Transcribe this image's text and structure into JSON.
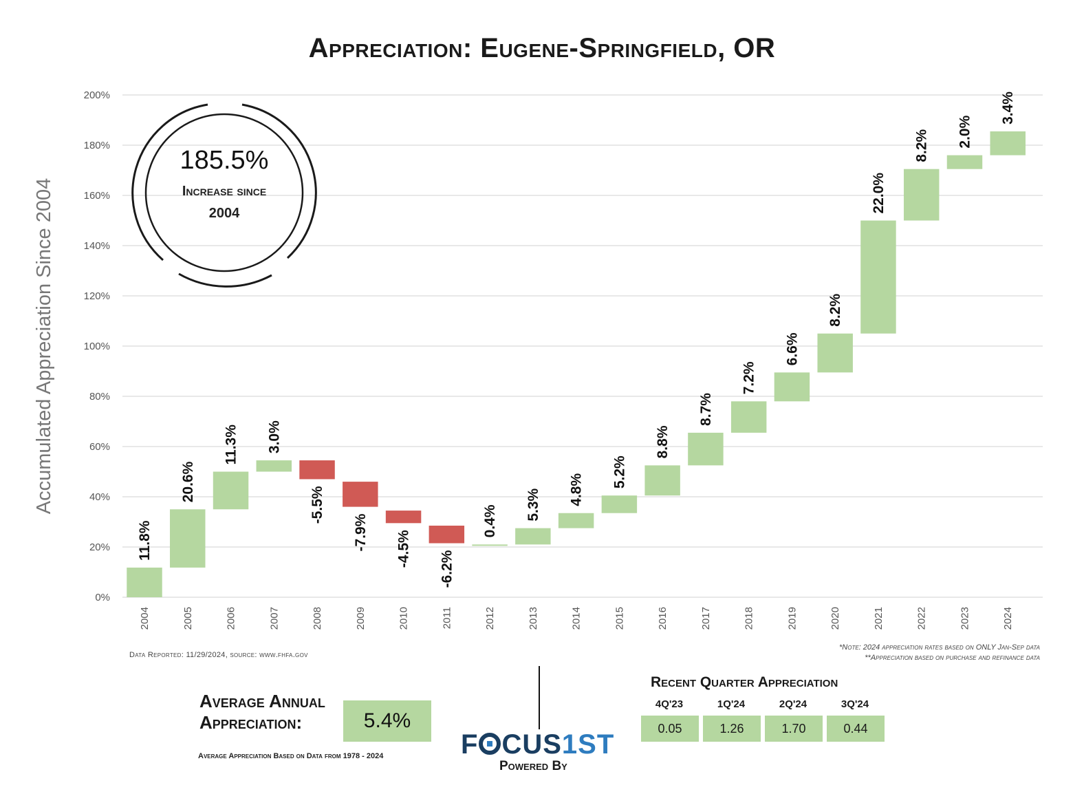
{
  "title": "Appreciation: Eugene-Springfield, OR",
  "badge": {
    "value": "185.5%",
    "caption_line1": "Increase since",
    "caption_line2": "2004"
  },
  "source_note": "Data Reported: 11/29/2024, source: www.fhfa.gov",
  "notes": [
    "*Note: 2024 appreciation rates based on ONLY Jan-Sep data",
    "**Appreciation based on purchase and refinance data"
  ],
  "average": {
    "label": "Average Annual Appreciation:",
    "value": "5.4%",
    "footnote": "Average Appreciation Based on Data from 1978 - 2024"
  },
  "logo": {
    "text_a": "F",
    "text_b": "CUS",
    "text_c": "1ST",
    "tagline": "Powered By"
  },
  "recent_quarter": {
    "title": "Recent Quarter Appreciation",
    "headers": [
      "4Q'23",
      "1Q'24",
      "2Q'24",
      "3Q'24"
    ],
    "values": [
      "0.05",
      "1.26",
      "1.70",
      "0.44"
    ]
  },
  "colors": {
    "positive": "#b5d7a0",
    "negative": "#d05a55",
    "grid": "#d9d9d9"
  },
  "chart_data": {
    "type": "bar",
    "subtype": "waterfall",
    "ylabel": "Accumulated Appreciation Since 2004",
    "xlabel": "",
    "ylim": [
      0,
      200
    ],
    "yticks": [
      "0%",
      "20%",
      "40%",
      "60%",
      "80%",
      "100%",
      "120%",
      "140%",
      "160%",
      "180%",
      "200%"
    ],
    "grid": true,
    "categories": [
      "2004",
      "2005",
      "2006",
      "2007",
      "2008",
      "2009",
      "2010",
      "2011",
      "2012",
      "2013",
      "2014",
      "2015",
      "2016",
      "2017",
      "2018",
      "2019",
      "2020",
      "2021",
      "2022",
      "2023",
      "2024"
    ],
    "values": [
      11.8,
      20.6,
      11.3,
      3.0,
      -5.5,
      -7.9,
      -4.5,
      -6.2,
      0.4,
      5.3,
      4.8,
      5.2,
      8.8,
      8.7,
      7.2,
      6.6,
      8.2,
      22.0,
      8.2,
      2.0,
      3.4
    ],
    "labels": [
      "11.8%",
      "20.6%",
      "11.3%",
      "3.0%",
      "-5.5%",
      "-7.9%",
      "-4.5%",
      "-6.2%",
      "0.4%",
      "5.3%",
      "4.8%",
      "5.2%",
      "8.8%",
      "8.7%",
      "7.2%",
      "6.6%",
      "8.2%",
      "22.0%",
      "8.2%",
      "2.0%",
      "3.4%"
    ],
    "bar_ranges": [
      [
        0,
        11.8
      ],
      [
        11.8,
        35
      ],
      [
        35,
        50
      ],
      [
        50,
        54.5
      ],
      [
        54.5,
        47
      ],
      [
        46,
        36
      ],
      [
        34.5,
        29.5
      ],
      [
        28.5,
        21.5
      ],
      [
        20.5,
        21
      ],
      [
        21,
        27.5
      ],
      [
        27.5,
        33.5
      ],
      [
        33.5,
        40.5
      ],
      [
        40.5,
        52.5
      ],
      [
        52.5,
        65.5
      ],
      [
        65.5,
        78
      ],
      [
        78,
        89.5
      ],
      [
        89.5,
        105
      ],
      [
        105,
        150
      ],
      [
        150,
        170.5
      ],
      [
        170.5,
        176
      ],
      [
        176,
        185.5
      ]
    ]
  }
}
